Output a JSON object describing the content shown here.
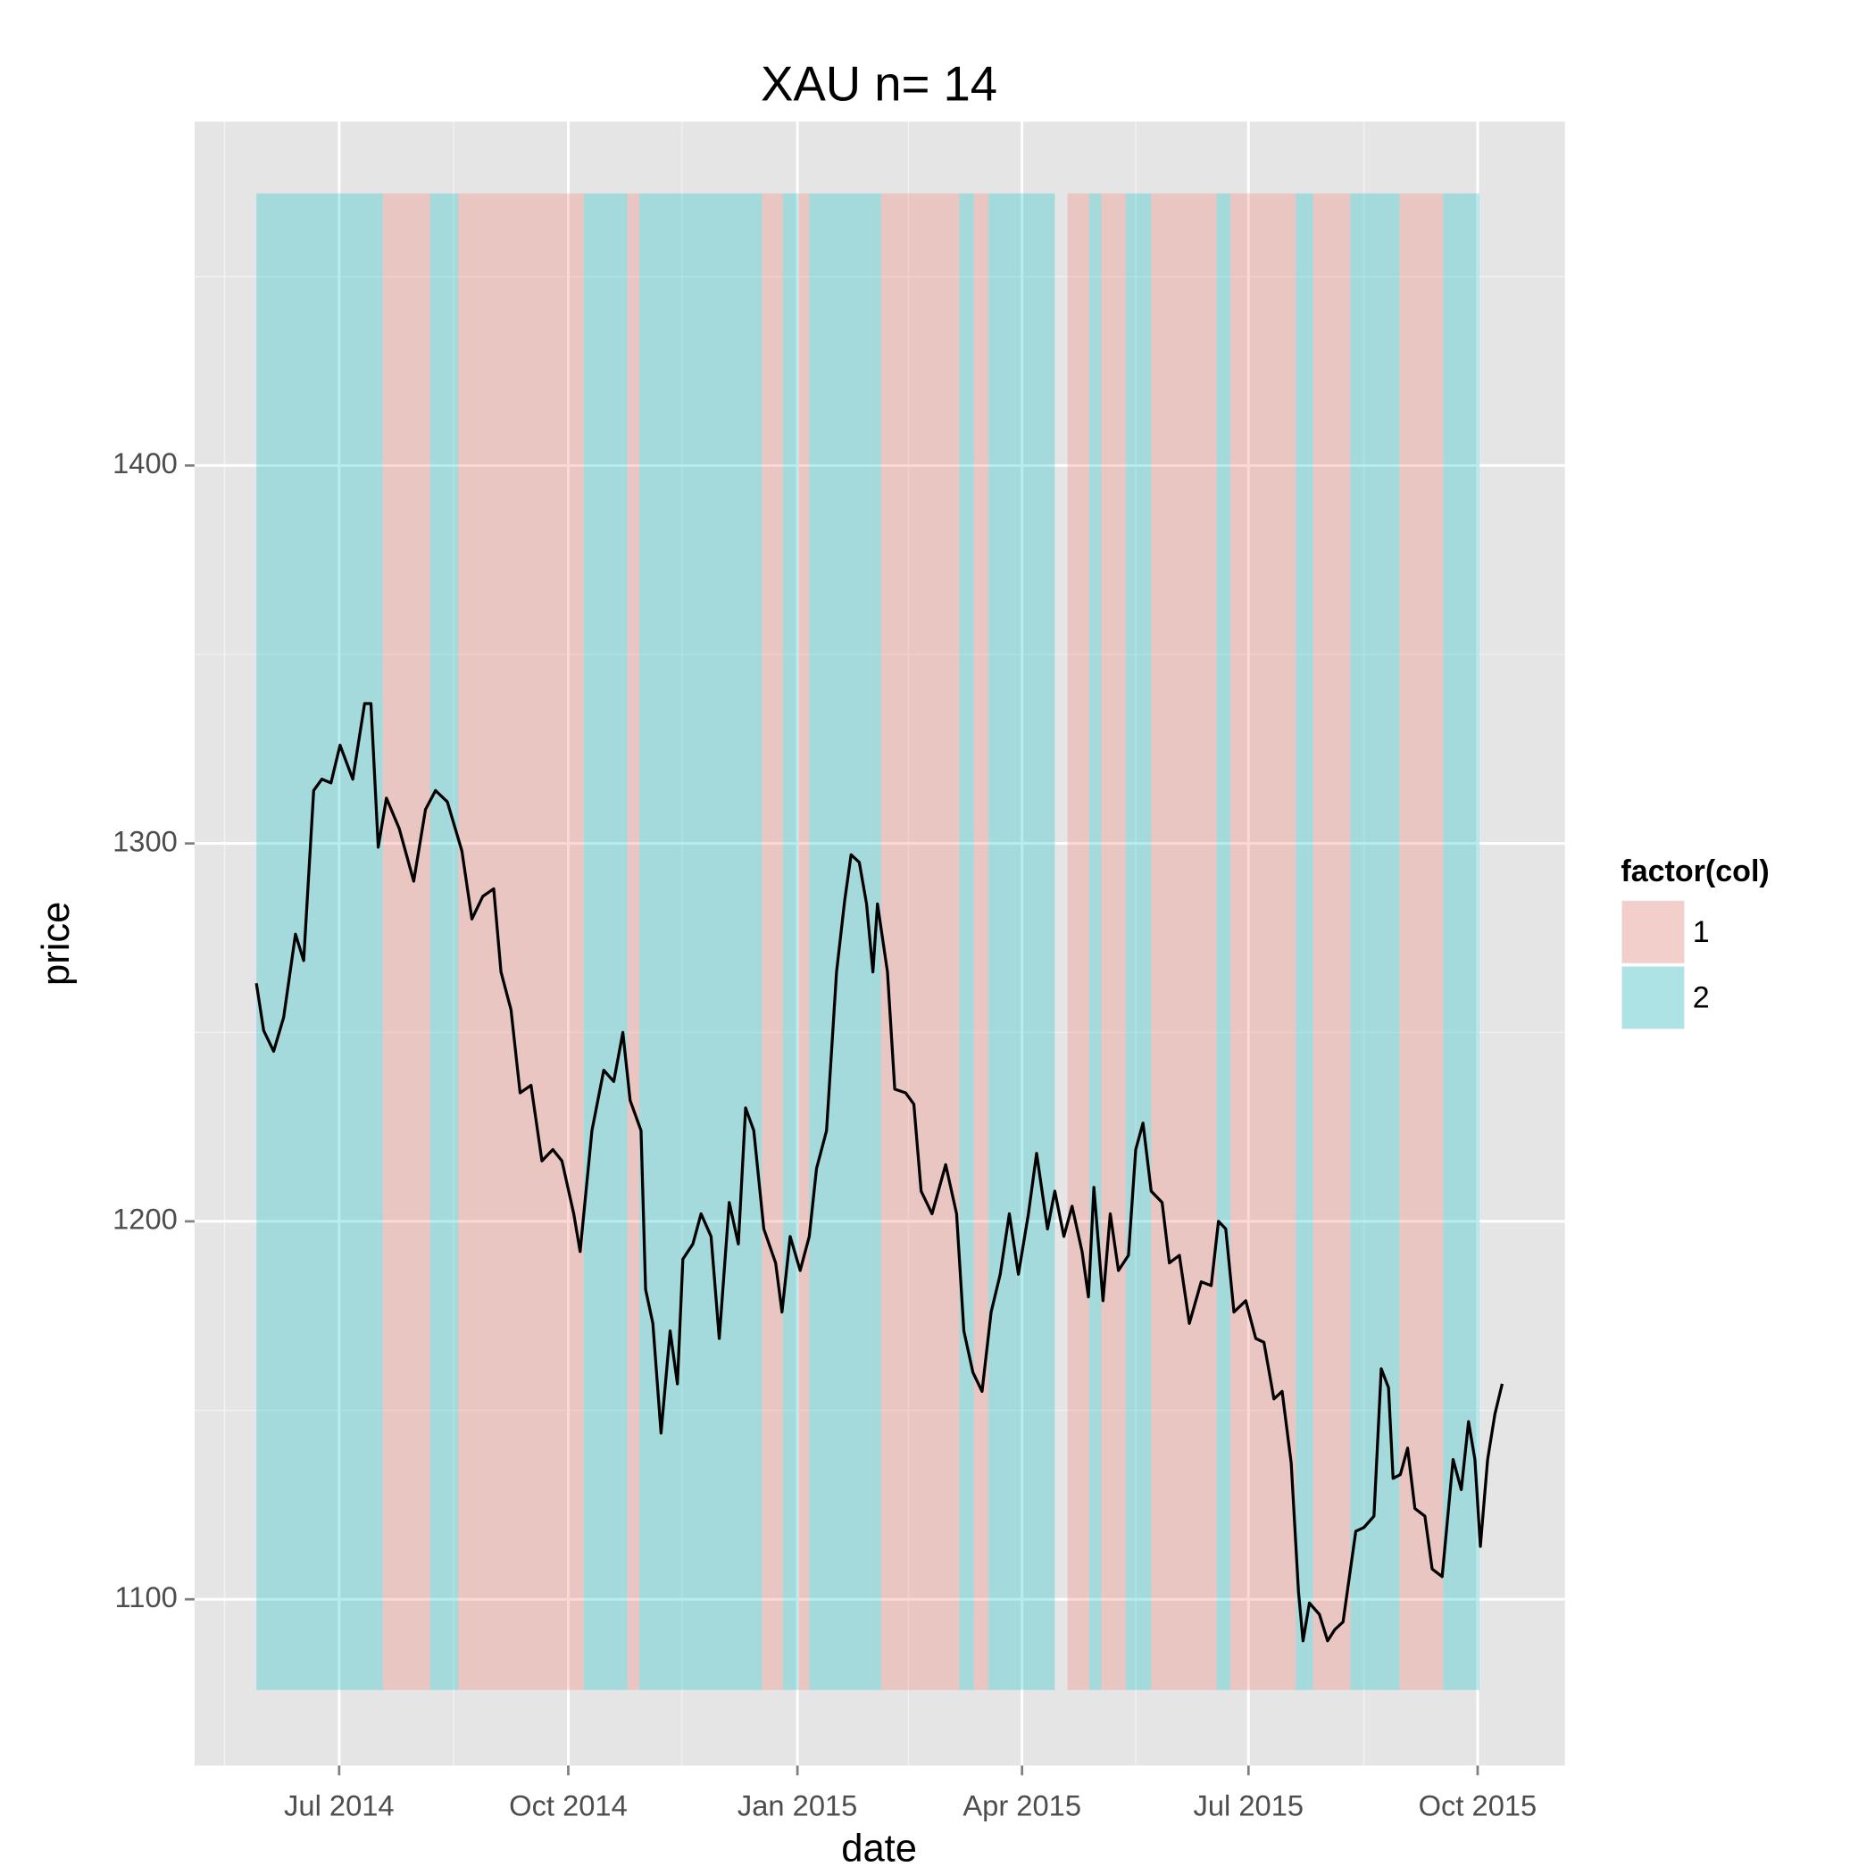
{
  "chart_data": {
    "type": "line",
    "title": "XAU n= 14",
    "x_label": "date",
    "y_label": "price",
    "xlim": [
      2014.337,
      2015.844
    ],
    "ylim": [
      1056,
      1491
    ],
    "xticks": [
      {
        "value": 2014.496,
        "label": "Jul 2014"
      },
      {
        "value": 2014.748,
        "label": "Oct 2014"
      },
      {
        "value": 2015.0,
        "label": "Jan 2015"
      },
      {
        "value": 2015.247,
        "label": "Apr 2015"
      },
      {
        "value": 2015.496,
        "label": "Jul 2015"
      },
      {
        "value": 2015.748,
        "label": "Oct 2015"
      }
    ],
    "yticks": [
      1100,
      1200,
      1300,
      1400
    ],
    "xminor": [
      2014.37,
      2014.622,
      2014.873,
      2015.122,
      2015.372,
      2015.623
    ],
    "yminor": [
      1150,
      1250,
      1350,
      1450
    ],
    "grid": true,
    "line_color": "#000000",
    "x": [
      2014.405,
      2014.413,
      2014.424,
      2014.435,
      2014.448,
      2014.457,
      2014.468,
      2014.477,
      2014.487,
      2014.497,
      2014.511,
      2014.524,
      2014.531,
      2014.539,
      2014.548,
      2014.562,
      2014.578,
      2014.591,
      2014.602,
      2014.615,
      2014.631,
      2014.642,
      2014.654,
      2014.666,
      2014.674,
      2014.685,
      2014.695,
      2014.707,
      2014.719,
      2014.731,
      2014.741,
      2014.754,
      2014.761,
      2014.774,
      2014.787,
      2014.798,
      2014.808,
      2014.816,
      2014.828,
      2014.833,
      2014.841,
      2014.85,
      2014.86,
      2014.868,
      2014.874,
      2014.885,
      2014.894,
      2014.905,
      2014.914,
      2014.925,
      2014.935,
      2014.943,
      2014.952,
      2014.963,
      2014.976,
      2014.983,
      2014.992,
      2015.003,
      2015.013,
      2015.021,
      2015.032,
      2015.043,
      2015.052,
      2015.059,
      2015.068,
      2015.076,
      2015.083,
      2015.088,
      2015.099,
      2015.107,
      2015.119,
      2015.128,
      2015.136,
      2015.148,
      2015.163,
      2015.175,
      2015.183,
      2015.193,
      2015.203,
      2015.213,
      2015.223,
      2015.233,
      2015.243,
      2015.254,
      2015.263,
      2015.275,
      2015.283,
      2015.293,
      2015.302,
      2015.313,
      2015.32,
      2015.326,
      2015.336,
      2015.344,
      2015.353,
      2015.364,
      2015.372,
      2015.38,
      2015.389,
      2015.401,
      2015.409,
      2015.42,
      2015.431,
      2015.444,
      2015.455,
      2015.463,
      2015.471,
      2015.48,
      2015.493,
      2015.504,
      2015.513,
      2015.524,
      2015.533,
      2015.543,
      2015.551,
      2015.556,
      2015.563,
      2015.574,
      2015.583,
      2015.591,
      2015.6,
      2015.614,
      2015.623,
      2015.634,
      2015.642,
      2015.65,
      2015.655,
      2015.663,
      2015.671,
      2015.679,
      2015.69,
      2015.698,
      2015.709,
      2015.721,
      2015.73,
      2015.738,
      2015.745,
      2015.751,
      2015.759,
      2015.767,
      2015.775
    ],
    "values": [
      1263,
      1250.5,
      1245,
      1254,
      1276,
      1269,
      1314,
      1317,
      1316,
      1326,
      1317,
      1337,
      1337,
      1299,
      1312,
      1304,
      1290,
      1309,
      1314,
      1311,
      1298,
      1280,
      1286,
      1288,
      1266,
      1256,
      1234,
      1236,
      1216,
      1219,
      1216,
      1202,
      1192,
      1224,
      1240,
      1237,
      1250,
      1232,
      1224,
      1182,
      1173,
      1144,
      1171,
      1157,
      1190,
      1194,
      1202,
      1196,
      1169,
      1205,
      1194,
      1230,
      1224,
      1198,
      1189,
      1176,
      1196,
      1187,
      1196,
      1214,
      1224,
      1266,
      1285,
      1297,
      1295,
      1284,
      1266,
      1284,
      1266,
      1235,
      1234,
      1231,
      1208,
      1202,
      1215,
      1202,
      1171,
      1160,
      1155,
      1176,
      1186,
      1202,
      1186,
      1202,
      1218,
      1198,
      1208,
      1196,
      1204,
      1192,
      1180,
      1209,
      1179,
      1202,
      1187,
      1191,
      1219,
      1226,
      1208,
      1205,
      1189,
      1191,
      1173,
      1184,
      1183,
      1200,
      1198,
      1176,
      1179,
      1169,
      1168,
      1153,
      1155,
      1136,
      1102,
      1089,
      1099,
      1096,
      1089,
      1092,
      1094,
      1118,
      1119,
      1122,
      1161,
      1156,
      1132,
      1133,
      1140,
      1124,
      1122,
      1108,
      1106,
      1137,
      1129,
      1147,
      1137,
      1114,
      1137,
      1149,
      1157
    ],
    "band_ylim": [
      1076,
      1472
    ],
    "band_opacity": 0.28,
    "bands": [
      {
        "start": 2014.405,
        "end": 2014.544,
        "group": "2"
      },
      {
        "start": 2014.544,
        "end": 2014.596,
        "group": "1"
      },
      {
        "start": 2014.596,
        "end": 2014.627,
        "group": "2"
      },
      {
        "start": 2014.627,
        "end": 2014.765,
        "group": "1"
      },
      {
        "start": 2014.765,
        "end": 2014.813,
        "group": "2"
      },
      {
        "start": 2014.813,
        "end": 2014.826,
        "group": "1"
      },
      {
        "start": 2014.826,
        "end": 2014.961,
        "group": "2"
      },
      {
        "start": 2014.961,
        "end": 2014.984,
        "group": "1"
      },
      {
        "start": 2014.984,
        "end": 2015.001,
        "group": "2"
      },
      {
        "start": 2015.001,
        "end": 2015.013,
        "group": "1"
      },
      {
        "start": 2015.013,
        "end": 2015.092,
        "group": "2"
      },
      {
        "start": 2015.092,
        "end": 2015.178,
        "group": "1"
      },
      {
        "start": 2015.178,
        "end": 2015.194,
        "group": "2"
      },
      {
        "start": 2015.194,
        "end": 2015.21,
        "group": "1"
      },
      {
        "start": 2015.21,
        "end": 2015.283,
        "group": "2"
      },
      {
        "start": 2015.297,
        "end": 2015.321,
        "group": "1"
      },
      {
        "start": 2015.321,
        "end": 2015.334,
        "group": "2"
      },
      {
        "start": 2015.334,
        "end": 2015.361,
        "group": "1"
      },
      {
        "start": 2015.361,
        "end": 2015.389,
        "group": "2"
      },
      {
        "start": 2015.389,
        "end": 2015.461,
        "group": "1"
      },
      {
        "start": 2015.461,
        "end": 2015.476,
        "group": "2"
      },
      {
        "start": 2015.476,
        "end": 2015.548,
        "group": "1"
      },
      {
        "start": 2015.548,
        "end": 2015.567,
        "group": "2"
      },
      {
        "start": 2015.567,
        "end": 2015.608,
        "group": "1"
      },
      {
        "start": 2015.608,
        "end": 2015.662,
        "group": "2"
      },
      {
        "start": 2015.662,
        "end": 2015.71,
        "group": "1"
      },
      {
        "start": 2015.71,
        "end": 2015.75,
        "group": "2"
      }
    ],
    "legend": {
      "title": "factor(col)",
      "position": "right",
      "items": [
        {
          "name": "1",
          "color": "#F8766D"
        },
        {
          "name": "2",
          "color": "#00BFC4"
        }
      ]
    }
  }
}
